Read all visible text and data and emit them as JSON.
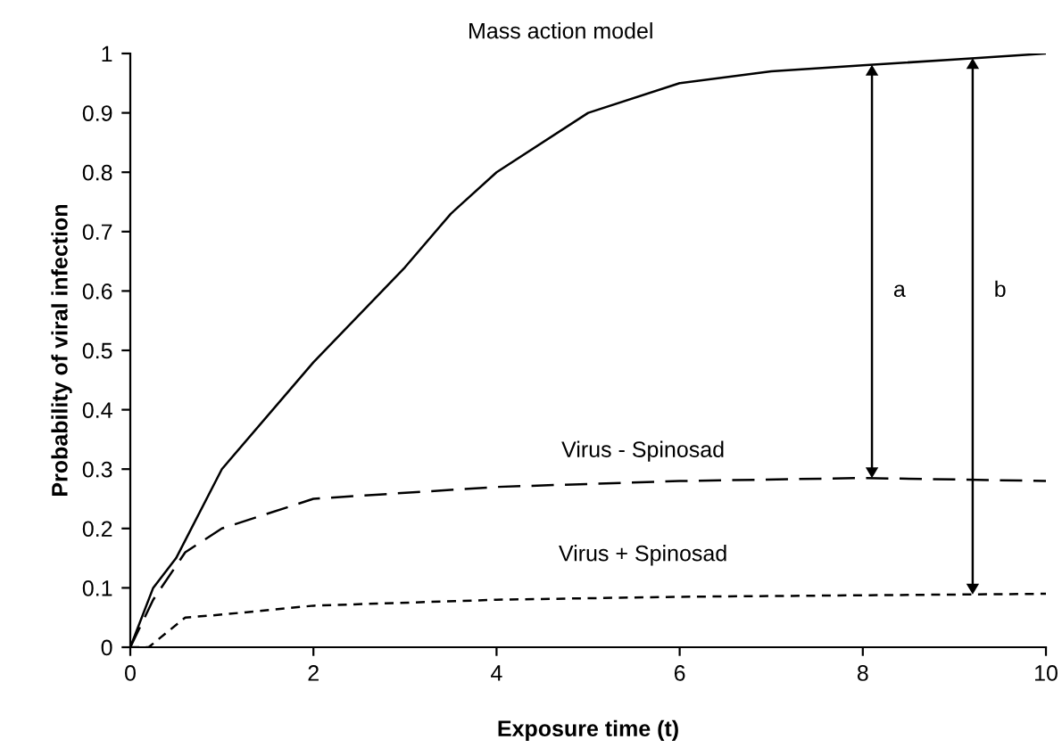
{
  "chart_data": {
    "type": "line",
    "xlabel": "Exposure time (t)",
    "ylabel": "Probability of viral infection",
    "xlim": [
      0,
      10
    ],
    "ylim": [
      0,
      1
    ],
    "xticks": [
      0,
      2,
      4,
      6,
      8,
      10
    ],
    "yticks": [
      0,
      0.1,
      0.2,
      0.3,
      0.4,
      0.5,
      0.6,
      0.7,
      0.8,
      0.9,
      1
    ],
    "grid": false,
    "legend": false,
    "marker": "none",
    "series": [
      {
        "name": "Mass action model",
        "color": "#000000",
        "line_style": "solid",
        "x": [
          0,
          0.25,
          0.5,
          1,
          2,
          3,
          3.5,
          4,
          5,
          6,
          7,
          8,
          9,
          10
        ],
        "values": [
          0,
          0.1,
          0.15,
          0.3,
          0.48,
          0.64,
          0.73,
          0.8,
          0.9,
          0.95,
          0.97,
          0.98,
          0.99,
          1.0
        ]
      },
      {
        "name": "Virus - Spinosad",
        "color": "#000000",
        "line_style": "dashed",
        "x": [
          0,
          0.25,
          0.6,
          1,
          2,
          4,
          6,
          8,
          10
        ],
        "values": [
          0,
          0.08,
          0.16,
          0.2,
          0.25,
          0.27,
          0.28,
          0.285,
          0.28
        ]
      },
      {
        "name": "Virus + Spinosad",
        "color": "#000000",
        "line_style": "dotted",
        "x": [
          0,
          0.2,
          0.6,
          1,
          2,
          4,
          6,
          10
        ],
        "values": [
          0,
          0,
          0.05,
          0.055,
          0.07,
          0.08,
          0.085,
          0.09
        ]
      }
    ],
    "annotations": [
      "a",
      "b"
    ]
  }
}
